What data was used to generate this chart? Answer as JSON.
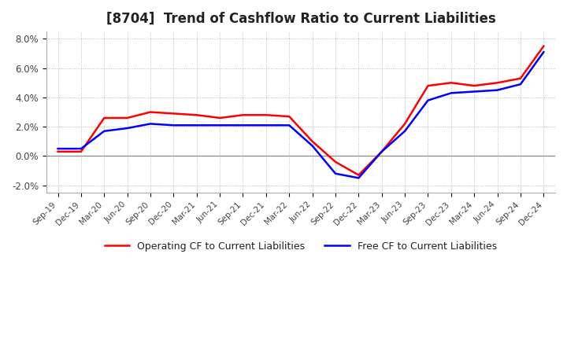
{
  "title": "[8704]  Trend of Cashflow Ratio to Current Liabilities",
  "title_fontsize": 12,
  "ylim": [
    -0.025,
    0.085
  ],
  "yticks": [
    -0.02,
    0.0,
    0.02,
    0.04,
    0.06,
    0.08
  ],
  "ytick_labels": [
    "-2.0%",
    "0.0%",
    "2.0%",
    "4.0%",
    "6.0%",
    "8.0%"
  ],
  "x_labels": [
    "Sep-19",
    "Dec-19",
    "Mar-20",
    "Jun-20",
    "Sep-20",
    "Dec-20",
    "Mar-21",
    "Jun-21",
    "Sep-21",
    "Dec-21",
    "Mar-22",
    "Jun-22",
    "Sep-22",
    "Dec-22",
    "Mar-23",
    "Jun-23",
    "Sep-23",
    "Dec-23",
    "Mar-24",
    "Jun-24",
    "Sep-24",
    "Dec-24"
  ],
  "operating_cf": [
    0.003,
    0.003,
    0.026,
    0.026,
    0.03,
    0.029,
    0.028,
    0.026,
    0.028,
    0.028,
    0.027,
    0.01,
    -0.004,
    -0.013,
    0.003,
    0.022,
    0.048,
    0.05,
    0.048,
    0.05,
    0.053,
    0.075
  ],
  "free_cf": [
    0.005,
    0.005,
    0.017,
    0.019,
    0.022,
    0.021,
    0.021,
    0.021,
    0.021,
    0.021,
    0.021,
    0.007,
    -0.012,
    -0.015,
    0.003,
    0.017,
    0.038,
    0.043,
    0.044,
    0.045,
    0.049,
    0.071
  ],
  "operating_cf_color": "#ff0000",
  "free_cf_color": "#0000ff",
  "line_width": 1.8,
  "background_color": "#ffffff",
  "grid_color": "#aaaaaa",
  "legend_labels": [
    "Operating CF to Current Liabilities",
    "Free CF to Current Liabilities"
  ]
}
